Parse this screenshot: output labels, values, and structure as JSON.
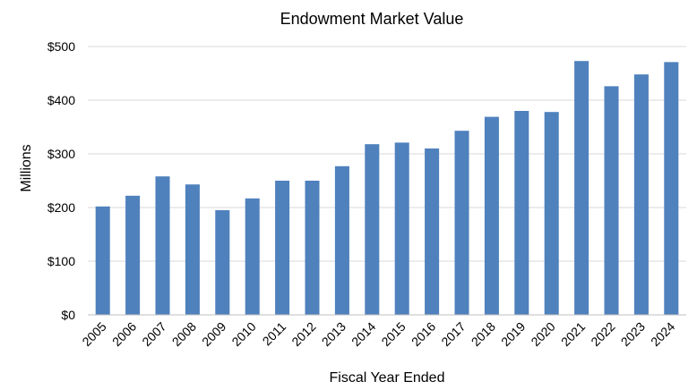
{
  "chart_data": {
    "type": "bar",
    "title": "Endowment Market Value",
    "xlabel": "Fiscal Year Ended",
    "ylabel": "Millions",
    "ylim": [
      0,
      500
    ],
    "yticks": [
      0,
      100,
      200,
      300,
      400,
      500
    ],
    "ytick_labels": [
      "$0",
      "$100",
      "$200",
      "$300",
      "$400",
      "$500"
    ],
    "grid": true,
    "legend": "none",
    "bar_color": "#4f81bd",
    "categories": [
      "2005",
      "2006",
      "2007",
      "2008",
      "2009",
      "2010",
      "2011",
      "2012",
      "2013",
      "2014",
      "2015",
      "2016",
      "2017",
      "2018",
      "2019",
      "2020",
      "2021",
      "2022",
      "2023",
      "2024"
    ],
    "values": [
      202,
      222,
      258,
      243,
      195,
      217,
      250,
      250,
      277,
      318,
      321,
      310,
      343,
      369,
      380,
      378,
      473,
      426,
      448,
      471
    ]
  }
}
